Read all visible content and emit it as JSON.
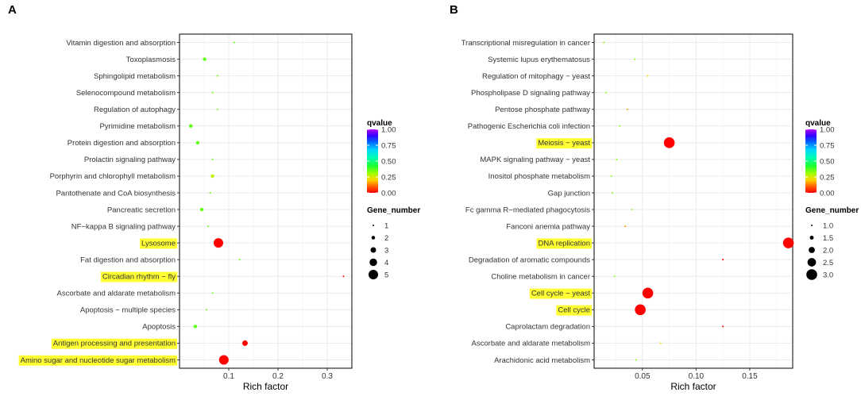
{
  "chart_data": [
    {
      "panel": "A",
      "type": "scatter",
      "xlabel": "Rich factor",
      "xlim": [
        0,
        0.35
      ],
      "xticks": [
        0.1,
        0.2,
        0.3
      ],
      "xtick_labels": [
        "0.1",
        "0.2",
        "0.3"
      ],
      "highlight_color": "#ffff33",
      "categories": [
        "Amino sugar and nucleotide sugar metabolism",
        "Antigen processing and presentation",
        "Apoptosis",
        "Apoptosis − multiple species",
        "Ascorbate and aldarate metabolism",
        "Circadian rhythm − fly",
        "Fat digestion and absorption",
        "Lysosome",
        "NF−kappa B signaling pathway",
        "Pancreatic secretion",
        "Pantothenate and CoA biosynthesis",
        "Porphyrin and chlorophyll metabolism",
        "Prolactin signaling pathway",
        "Protein digestion and absorption",
        "Pyrimidine metabolism",
        "Regulation of autophagy",
        "Selenocompound metabolism",
        "Sphingolipid metabolism",
        "Toxoplasmosis",
        "Vitamin digestion and absorption"
      ],
      "rich_factor": [
        0.09,
        0.133,
        0.032,
        0.055,
        0.067,
        0.333,
        0.122,
        0.079,
        0.058,
        0.045,
        0.062,
        0.067,
        0.067,
        0.037,
        0.023,
        0.077,
        0.067,
        0.077,
        0.051,
        0.111
      ],
      "gene_number": [
        5,
        3,
        2,
        1,
        1,
        1,
        1,
        5,
        1,
        2,
        1,
        2,
        1,
        2,
        2,
        1,
        1,
        1,
        2,
        1
      ],
      "qvalue": [
        0.0,
        0.0,
        0.36,
        0.36,
        0.36,
        0.0,
        0.36,
        0.0,
        0.36,
        0.36,
        0.36,
        0.27,
        0.36,
        0.36,
        0.36,
        0.36,
        0.36,
        0.36,
        0.36,
        0.36
      ],
      "highlighted": [
        "Amino sugar and nucleotide sugar metabolism",
        "Antigen processing and presentation",
        "Circadian rhythm − fly",
        "Lysosome"
      ],
      "color_legend": {
        "title": "qvalue",
        "ticks": [
          1.0,
          0.75,
          0.5,
          0.25,
          0.0
        ],
        "tick_labels": [
          "1.00",
          "0.75",
          "0.50",
          "0.25",
          "0.00"
        ]
      },
      "size_legend": {
        "title": "Gene_number",
        "values": [
          1,
          2,
          3,
          4,
          5
        ],
        "labels": [
          "1",
          "2",
          "3",
          "4",
          "5"
        ]
      }
    },
    {
      "panel": "B",
      "type": "scatter",
      "xlabel": "Rich factor",
      "xlim": [
        0.005,
        0.19
      ],
      "xticks": [
        0.05,
        0.1,
        0.15
      ],
      "xtick_labels": [
        "0.05",
        "0.10",
        "0.15"
      ],
      "highlight_color": "#ffff33",
      "categories": [
        "Arachidonic acid metabolism",
        "Ascorbate and aldarate metabolism",
        "Caprolactam degradation",
        "Cell cycle",
        "Cell cycle − yeast",
        "Choline metabolism in cancer",
        "Degradation of aromatic compounds",
        "DNA replication",
        "Fanconi anemia pathway",
        "Fc gamma R−mediated phagocytosis",
        "Gap junction",
        "Inositol phosphate metabolism",
        "MAPK signaling pathway − yeast",
        "Meiosis − yeast",
        "Pathogenic Escherichia coli infection",
        "Pentose phosphate pathway",
        "Phospholipase D signaling pathway",
        "Regulation of mitophagy − yeast",
        "Systemic lupus erythematosus",
        "Transcriptional misregulation in cancer"
      ],
      "rich_factor": [
        0.044,
        0.067,
        0.125,
        0.048,
        0.055,
        0.024,
        0.125,
        0.186,
        0.034,
        0.04,
        0.022,
        0.021,
        0.026,
        0.075,
        0.029,
        0.036,
        0.016,
        0.055,
        0.043,
        0.014
      ],
      "gene_number": [
        1,
        1,
        1,
        3,
        3,
        1,
        1,
        3,
        1,
        1,
        1,
        1,
        1,
        3,
        1,
        1,
        1,
        1,
        1,
        1
      ],
      "qvalue": [
        0.33,
        0.2,
        0.0,
        0.0,
        0.0,
        0.33,
        0.0,
        0.0,
        0.15,
        0.33,
        0.33,
        0.33,
        0.33,
        0.0,
        0.33,
        0.15,
        0.33,
        0.2,
        0.33,
        0.33
      ],
      "highlighted": [
        "Cell cycle",
        "Cell cycle − yeast",
        "DNA replication",
        "Meiosis − yeast"
      ],
      "color_legend": {
        "title": "qvalue",
        "ticks": [
          1.0,
          0.75,
          0.5,
          0.25,
          0.0
        ],
        "tick_labels": [
          "1.00",
          "0.75",
          "0.50",
          "0.25",
          "0.00"
        ]
      },
      "size_legend": {
        "title": "Gene_number",
        "values": [
          1.0,
          1.5,
          2.0,
          2.5,
          3.0
        ],
        "labels": [
          "1.0",
          "1.5",
          "2.0",
          "2.5",
          "3.0"
        ]
      }
    }
  ]
}
